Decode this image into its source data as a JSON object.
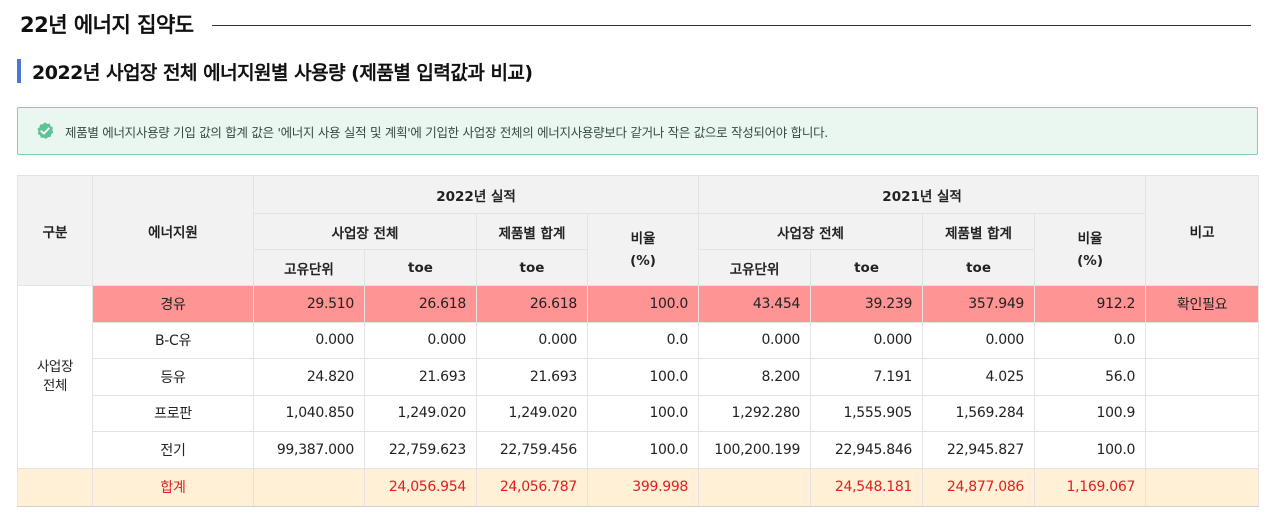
{
  "header": {
    "title": "22년 에너지 집약도"
  },
  "section": {
    "title": "2022년 사업장 전체 에너지원별 사용량 (제품별 입력값과 비교)"
  },
  "notice": {
    "icon": "verified-check-icon",
    "text": "제품별 에너지사용량 기입 값의 합계 값은 '에너지 사용 실적 및 계획'에 기입한 사업장 전체의 에너지사용량보다 같거나 작은 값으로 작성되어야 합니다.",
    "color": "#7fd1ac"
  },
  "table": {
    "headers": {
      "category": "구분",
      "energy_source": "에너지원",
      "year_2022": "2022년 실적",
      "year_2021": "2021년 실적",
      "site_total": "사업장 전체",
      "product_sum": "제품별 합계",
      "ratio": "비율\n(%)",
      "native_unit": "고유단위",
      "toe": "toe",
      "note": "비고"
    },
    "group_label": "사업장\n전체",
    "rows": [
      {
        "name": "경유",
        "c2022_native": "29.510",
        "c2022_toe": "26.618",
        "c2022_prod": "26.618",
        "c2022_ratio": "100.0",
        "c2021_native": "43.454",
        "c2021_toe": "39.239",
        "c2021_prod": "357.949",
        "c2021_ratio": "912.2",
        "note": "확인필요"
      },
      {
        "name": "B-C유",
        "c2022_native": "0.000",
        "c2022_toe": "0.000",
        "c2022_prod": "0.000",
        "c2022_ratio": "0.0",
        "c2021_native": "0.000",
        "c2021_toe": "0.000",
        "c2021_prod": "0.000",
        "c2021_ratio": "0.0",
        "note": ""
      },
      {
        "name": "등유",
        "c2022_native": "24.820",
        "c2022_toe": "21.693",
        "c2022_prod": "21.693",
        "c2022_ratio": "100.0",
        "c2021_native": "8.200",
        "c2021_toe": "7.191",
        "c2021_prod": "4.025",
        "c2021_ratio": "56.0",
        "note": ""
      },
      {
        "name": "프로판",
        "c2022_native": "1,040.850",
        "c2022_toe": "1,249.020",
        "c2022_prod": "1,249.020",
        "c2022_ratio": "100.0",
        "c2021_native": "1,292.280",
        "c2021_toe": "1,555.905",
        "c2021_prod": "1,569.284",
        "c2021_ratio": "100.9",
        "note": ""
      },
      {
        "name": "전기",
        "c2022_native": "99,387.000",
        "c2022_toe": "22,759.623",
        "c2022_prod": "22,759.456",
        "c2022_ratio": "100.0",
        "c2021_native": "100,200.199",
        "c2021_toe": "22,945.846",
        "c2021_prod": "22,945.827",
        "c2021_ratio": "100.0",
        "note": ""
      }
    ],
    "total": {
      "name": "합계",
      "c2022_native": "",
      "c2022_toe": "24,056.954",
      "c2022_prod": "24,056.787",
      "c2022_ratio": "399.998",
      "c2021_native": "",
      "c2021_toe": "24,548.181",
      "c2021_prod": "24,877.086",
      "c2021_ratio": "1,169.067",
      "note": ""
    },
    "colors": {
      "highlight_row": "#ff9494",
      "total_row": "#fff0d6",
      "total_text": "#e02020",
      "header_bg": "#f2f2f2"
    }
  }
}
